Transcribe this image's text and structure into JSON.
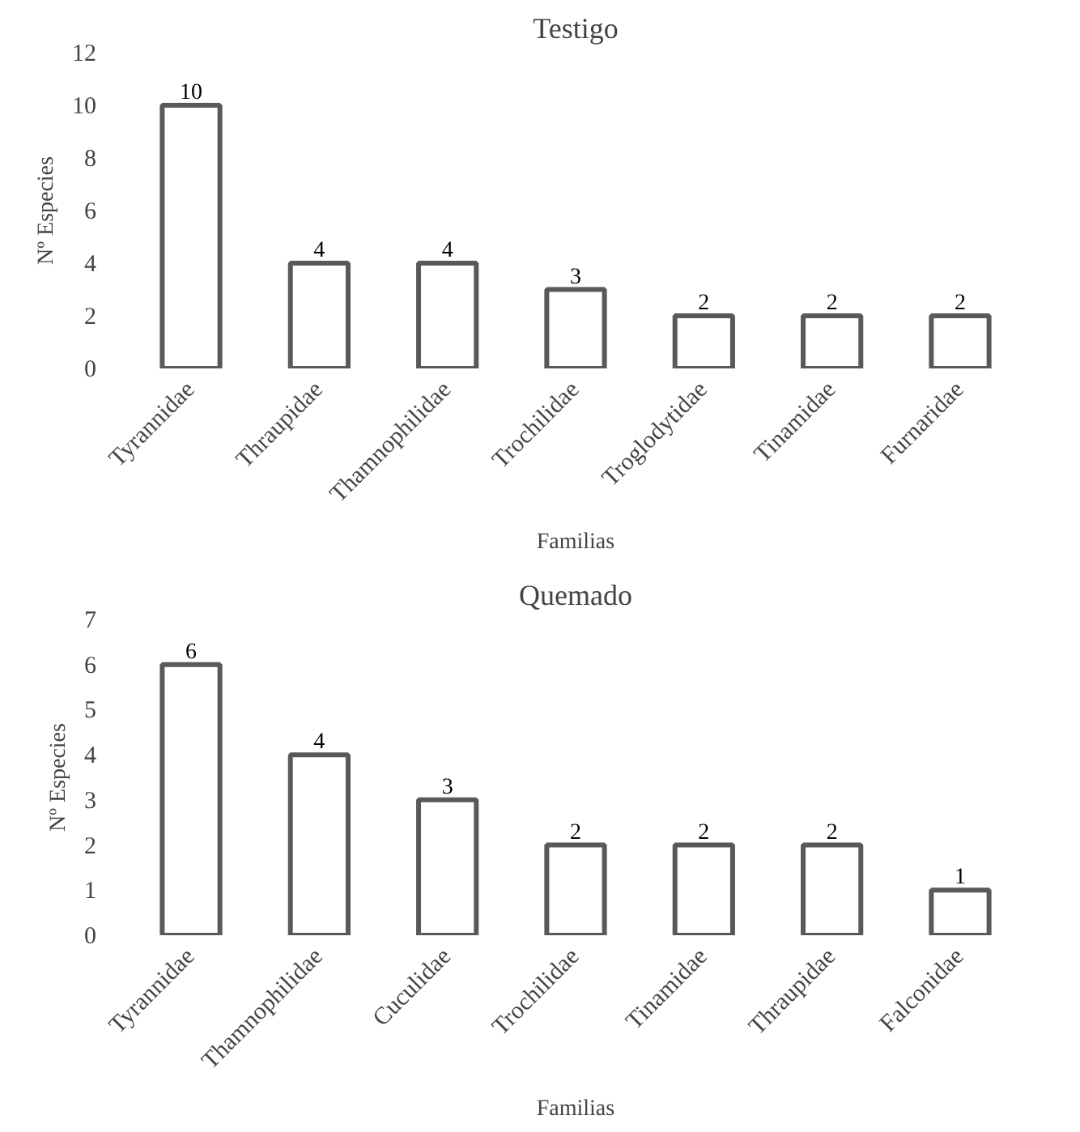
{
  "chart_data": [
    {
      "type": "bar",
      "title": "Testigo",
      "xlabel": "Familias",
      "ylabel": "Nº Especies",
      "categories": [
        "Tyrannidae",
        "Thraupidae",
        "Thamnophilidae",
        "Trochilidae",
        "Troglodytidae",
        "Tinamidae",
        "Furnaridae"
      ],
      "series": [
        {
          "color": "#595959",
          "values": [
            10,
            4,
            4,
            3,
            2,
            2,
            2
          ]
        }
      ],
      "ylim": [
        0,
        12
      ],
      "yticks": [
        0,
        2,
        4,
        6,
        8,
        10,
        12
      ],
      "data_labels": true
    },
    {
      "type": "bar",
      "title": "Quemado",
      "xlabel": "Familias",
      "ylabel": "Nº Especies",
      "categories": [
        "Tyrannidae",
        "Thamnophilidae",
        "Cuculidae",
        "Trochilidae",
        "Tinamidae",
        "Thraupidae",
        "Falconidae"
      ],
      "series": [
        {
          "color": "#595959",
          "values": [
            6,
            4,
            3,
            2,
            2,
            2,
            1
          ]
        }
      ],
      "ylim": [
        0,
        7
      ],
      "yticks": [
        0,
        1,
        2,
        3,
        4,
        5,
        6,
        7
      ],
      "data_labels": true
    }
  ]
}
